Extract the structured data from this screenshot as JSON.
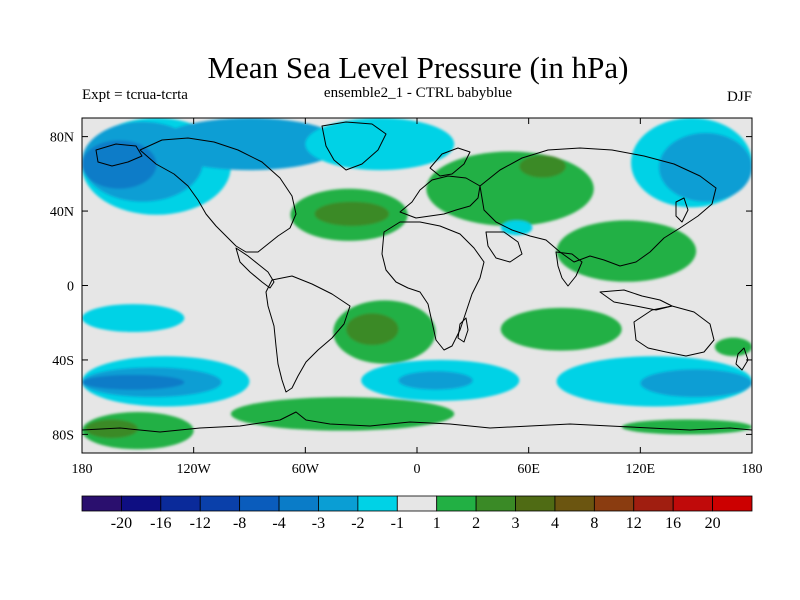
{
  "chart_data": {
    "type": "heatmap",
    "title": "Mean Sea Level Pressure (in hPa)",
    "subtitle_left": "Expt = tcrua-tcrta",
    "subtitle_center": "ensemble2_1 - CTRL babyblue",
    "subtitle_right": "DJF",
    "x_ticks": [
      {
        "value": -180,
        "label": "180"
      },
      {
        "value": -120,
        "label": "120W"
      },
      {
        "value": -60,
        "label": "60W"
      },
      {
        "value": 0,
        "label": "0"
      },
      {
        "value": 60,
        "label": "60E"
      },
      {
        "value": 120,
        "label": "120E"
      },
      {
        "value": 180,
        "label": "180"
      }
    ],
    "y_ticks": [
      {
        "value": 80,
        "label": "80N"
      },
      {
        "value": 40,
        "label": "40N"
      },
      {
        "value": 0,
        "label": "0"
      },
      {
        "value": -40,
        "label": "40S"
      },
      {
        "value": -80,
        "label": "80S"
      }
    ],
    "xlim": [
      -180,
      180
    ],
    "ylim": [
      -90,
      90
    ],
    "colorbar": {
      "colors": [
        "#2a0f6e",
        "#0e0e82",
        "#0a2a9a",
        "#0a40aa",
        "#0a5cbc",
        "#0a7cc8",
        "#0a9ed4",
        "#00d2e6",
        "#e6e6e6",
        "#22b044",
        "#3a8a26",
        "#4f6b14",
        "#6b5510",
        "#8a3c10",
        "#a01e10",
        "#c00a0a",
        "#cc0000"
      ],
      "labels": [
        {
          "boundary": 1,
          "text": "-20"
        },
        {
          "boundary": 2,
          "text": "-16"
        },
        {
          "boundary": 3,
          "text": "-12"
        },
        {
          "boundary": 4,
          "text": "-8"
        },
        {
          "boundary": 5,
          "text": "-4"
        },
        {
          "boundary": 6,
          "text": "-3"
        },
        {
          "boundary": 7,
          "text": "-2"
        },
        {
          "boundary": 8,
          "text": "-1"
        },
        {
          "boundary": 9,
          "text": "1"
        },
        {
          "boundary": 10,
          "text": "2"
        },
        {
          "boundary": 11,
          "text": "3"
        },
        {
          "boundary": 12,
          "text": "4"
        },
        {
          "boundary": 13,
          "text": "8"
        },
        {
          "boundary": 14,
          "text": "12"
        },
        {
          "boundary": 15,
          "text": "16"
        },
        {
          "boundary": 16,
          "text": "20"
        }
      ]
    },
    "background_level": "#e6e6e6",
    "anomaly_regions": [
      {
        "name": "arctic-pacific-low",
        "color": "#00d2e6",
        "lon": [
          -180,
          -100
        ],
        "lat": [
          38,
          90
        ]
      },
      {
        "name": "north-pacific-low-mid",
        "color": "#0a9ed4",
        "lon": [
          -180,
          -115
        ],
        "lat": [
          45,
          88
        ]
      },
      {
        "name": "north-pacific-low-core",
        "color": "#0a7cc8",
        "lon": [
          -180,
          -140
        ],
        "lat": [
          52,
          78
        ]
      },
      {
        "name": "arctic-canada-low",
        "color": "#0a9ed4",
        "lon": [
          -140,
          -40
        ],
        "lat": [
          62,
          90
        ]
      },
      {
        "name": "arctic-atlantic-low",
        "color": "#00d2e6",
        "lon": [
          -60,
          20
        ],
        "lat": [
          62,
          90
        ]
      },
      {
        "name": "north-atlantic-high",
        "color": "#22b044",
        "lon": [
          -68,
          -5
        ],
        "lat": [
          24,
          52
        ]
      },
      {
        "name": "north-atlantic-high-core",
        "color": "#3a8a26",
        "lon": [
          -55,
          -15
        ],
        "lat": [
          32,
          45
        ]
      },
      {
        "name": "eurasia-high",
        "color": "#22b044",
        "lon": [
          5,
          95
        ],
        "lat": [
          32,
          72
        ]
      },
      {
        "name": "eurasia-high-core",
        "color": "#3a8a26",
        "lon": [
          55,
          80
        ],
        "lat": [
          58,
          70
        ]
      },
      {
        "name": "middle-east-low",
        "color": "#00d2e6",
        "lon": [
          45,
          62
        ],
        "lat": [
          27,
          35
        ]
      },
      {
        "name": "south-asia-high",
        "color": "#22b044",
        "lon": [
          75,
          150
        ],
        "lat": [
          2,
          35
        ]
      },
      {
        "name": "north-pacific-west-low",
        "color": "#00d2e6",
        "lon": [
          115,
          180
        ],
        "lat": [
          42,
          90
        ]
      },
      {
        "name": "north-pacific-west-mid",
        "color": "#0a9ed4",
        "lon": [
          130,
          180
        ],
        "lat": [
          45,
          82
        ]
      },
      {
        "name": "tropical-pacific-low",
        "color": "#00d2e6",
        "lon": [
          -180,
          -125
        ],
        "lat": [
          -25,
          -10
        ]
      },
      {
        "name": "south-atlantic-high",
        "color": "#22b044",
        "lon": [
          -45,
          10
        ],
        "lat": [
          -42,
          -8
        ]
      },
      {
        "name": "south-atlantic-high-core",
        "color": "#3a8a26",
        "lon": [
          -38,
          -10
        ],
        "lat": [
          -32,
          -15
        ]
      },
      {
        "name": "south-indian-high",
        "color": "#22b044",
        "lon": [
          45,
          110
        ],
        "lat": [
          -35,
          -12
        ]
      },
      {
        "name": "southern-pacific-low",
        "color": "#00d2e6",
        "lon": [
          -180,
          -90
        ],
        "lat": [
          -65,
          -38
        ]
      },
      {
        "name": "southern-pacific-low-mid",
        "color": "#0a9ed4",
        "lon": [
          -180,
          -105
        ],
        "lat": [
          -60,
          -44
        ]
      },
      {
        "name": "southern-pacific-low-core",
        "color": "#0a7cc8",
        "lon": [
          -180,
          -125
        ],
        "lat": [
          -56,
          -48
        ]
      },
      {
        "name": "southern-atlantic-low",
        "color": "#00d2e6",
        "lon": [
          -30,
          55
        ],
        "lat": [
          -62,
          -40
        ]
      },
      {
        "name": "southern-atlantic-low-mid",
        "color": "#0a9ed4",
        "lon": [
          -10,
          30
        ],
        "lat": [
          -56,
          -46
        ]
      },
      {
        "name": "southern-indian-low",
        "color": "#00d2e6",
        "lon": [
          75,
          180
        ],
        "lat": [
          -65,
          -38
        ]
      },
      {
        "name": "southern-indian-low-mid",
        "color": "#0a9ed4",
        "lon": [
          120,
          180
        ],
        "lat": [
          -60,
          -45
        ]
      },
      {
        "name": "antarctic-pacific-high",
        "color": "#22b044",
        "lon": [
          -180,
          -120
        ],
        "lat": [
          -88,
          -68
        ]
      },
      {
        "name": "antarctic-pacific-high-core",
        "color": "#3a8a26",
        "lon": [
          -178,
          -150
        ],
        "lat": [
          -82,
          -72
        ]
      },
      {
        "name": "antarctic-atlantic-high",
        "color": "#22b044",
        "lon": [
          -100,
          20
        ],
        "lat": [
          -78,
          -60
        ]
      },
      {
        "name": "tasman-high",
        "color": "#22b044",
        "lon": [
          160,
          180
        ],
        "lat": [
          -38,
          -28
        ]
      },
      {
        "name": "antarctic-indian-high",
        "color": "#22b044",
        "lon": [
          110,
          180
        ],
        "lat": [
          -80,
          -72
        ]
      }
    ]
  }
}
